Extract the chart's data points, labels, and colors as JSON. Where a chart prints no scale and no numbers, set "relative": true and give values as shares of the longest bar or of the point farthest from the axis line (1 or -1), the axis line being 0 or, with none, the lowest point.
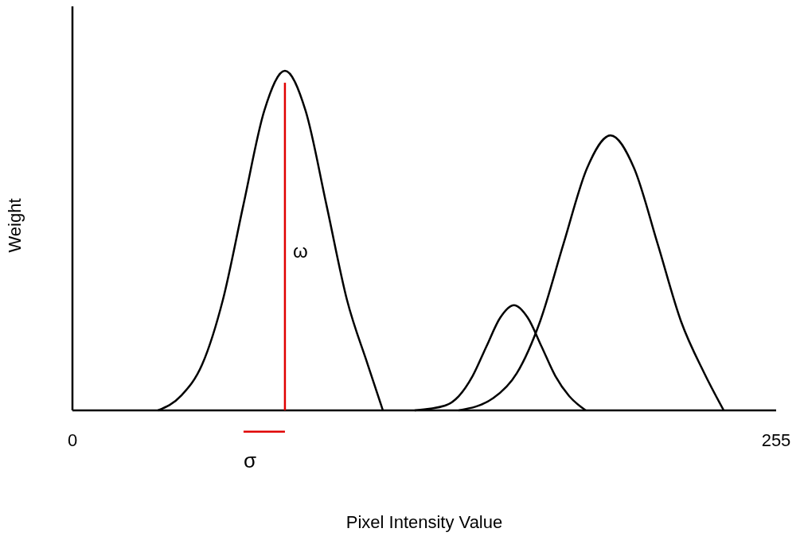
{
  "chart_data": {
    "type": "line",
    "relative": true,
    "xlabel": "Pixel Intensity Value",
    "ylabel": "Weight",
    "xlim": [
      0,
      255
    ],
    "xticks": [
      0,
      255
    ],
    "grid": false,
    "legend": false,
    "marker": "none",
    "line_style": "solid",
    "series": [
      {
        "color": "#000000",
        "x": [
          31,
          39.5,
          47,
          54.5,
          62,
          69.5,
          77,
          84.5,
          92,
          99.5,
          107,
          112.5
        ],
        "values": [
          0,
          0.044,
          0.135,
          0.325,
          0.607,
          0.882,
          1,
          0.882,
          0.607,
          0.325,
          0.135,
          0
        ]
      },
      {
        "color": "#000000",
        "x": [
          124,
          135,
          140,
          145,
          150,
          155,
          160,
          165,
          170,
          175,
          180,
          186
        ],
        "values": [
          0,
          0.014,
          0.042,
          0.101,
          0.188,
          0.273,
          0.31,
          0.273,
          0.188,
          0.101,
          0.042,
          0
        ]
      },
      {
        "color": "#000000",
        "x": [
          140,
          152.5,
          161,
          169.5,
          178,
          186.5,
          195,
          203.5,
          212,
          220.5,
          229,
          236
        ],
        "values": [
          0,
          0.036,
          0.109,
          0.263,
          0.492,
          0.714,
          0.81,
          0.714,
          0.492,
          0.263,
          0.109,
          0
        ]
      },
      {
        "name": "ω",
        "color": "#e00000",
        "x": [
          77,
          77
        ],
        "values": [
          0,
          0.965
        ]
      },
      {
        "name": "σ",
        "color": "#e00000",
        "x": [
          62,
          77
        ],
        "values": [
          -0.063,
          -0.063
        ]
      }
    ]
  }
}
